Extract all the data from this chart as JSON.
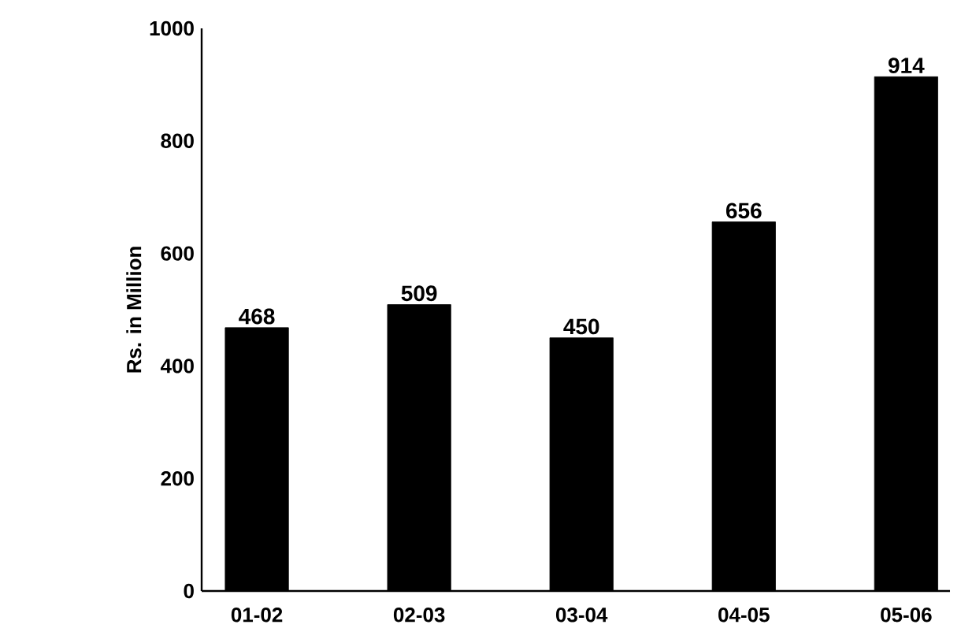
{
  "chart_data": {
    "type": "bar",
    "ylabel": "Rs. in  Million",
    "categories": [
      "01-02",
      "02-03",
      "03-04",
      "04-05",
      "05-06"
    ],
    "values": [
      468,
      509,
      450,
      656,
      914
    ],
    "color": "#000000",
    "data_labels": true,
    "ylim": [
      0,
      1000
    ],
    "yticks": [
      0,
      200,
      400,
      600,
      800,
      1000
    ]
  }
}
